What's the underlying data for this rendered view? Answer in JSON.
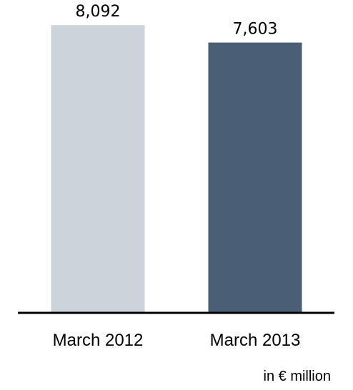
{
  "chart_data": {
    "type": "bar",
    "categories": [
      "March 2012",
      "March 2013"
    ],
    "values": [
      8092,
      7603
    ],
    "data_labels": [
      "8,092",
      "7,603"
    ],
    "colors": [
      "#ccd3da",
      "#4a5f76"
    ],
    "unit_note": "in € million",
    "ylim": [
      0,
      8800
    ],
    "grid": false
  }
}
